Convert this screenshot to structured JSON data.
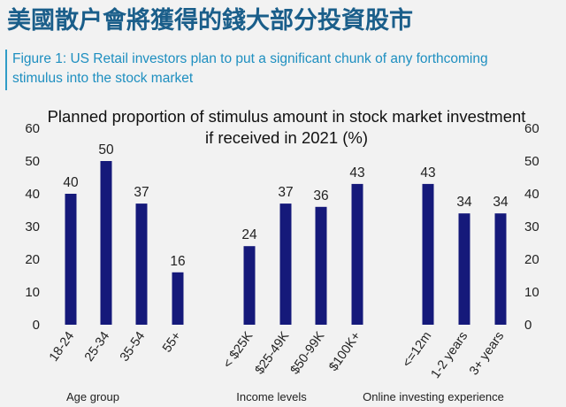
{
  "headline": "美國散户會將獲得的錢大部分投資股市",
  "figure_caption": {
    "line1": "Figure 1: US Retail investors plan to put a significant chunk of any forthcoming",
    "line2": "stimulus into the stock market"
  },
  "colors": {
    "bar": "#15197a",
    "headline": "#1a5e8a",
    "caption": "#1e8fc0"
  },
  "chart_data": {
    "type": "bar",
    "title_line1": "Planned proportion of stimulus amount in stock market investment",
    "title_line2": "if received in 2021 (%)",
    "ylim": [
      0,
      60
    ],
    "yticks": [
      0,
      10,
      20,
      30,
      40,
      50,
      60
    ],
    "grid": false,
    "dual_y_axis": true,
    "groups": [
      {
        "label": "Age group",
        "categories": [
          "18-24",
          "25-34",
          "35-54",
          "55+"
        ],
        "values": [
          40,
          50,
          37,
          16
        ]
      },
      {
        "label": "Income levels",
        "categories": [
          "< $25K",
          "$25-49K",
          "$50-99K",
          "$100K+"
        ],
        "values": [
          24,
          37,
          36,
          43
        ]
      },
      {
        "label": "Online investing experience",
        "categories": [
          "<=12m",
          "1-2 years",
          "3+ years"
        ],
        "values": [
          43,
          34,
          34
        ]
      }
    ]
  }
}
